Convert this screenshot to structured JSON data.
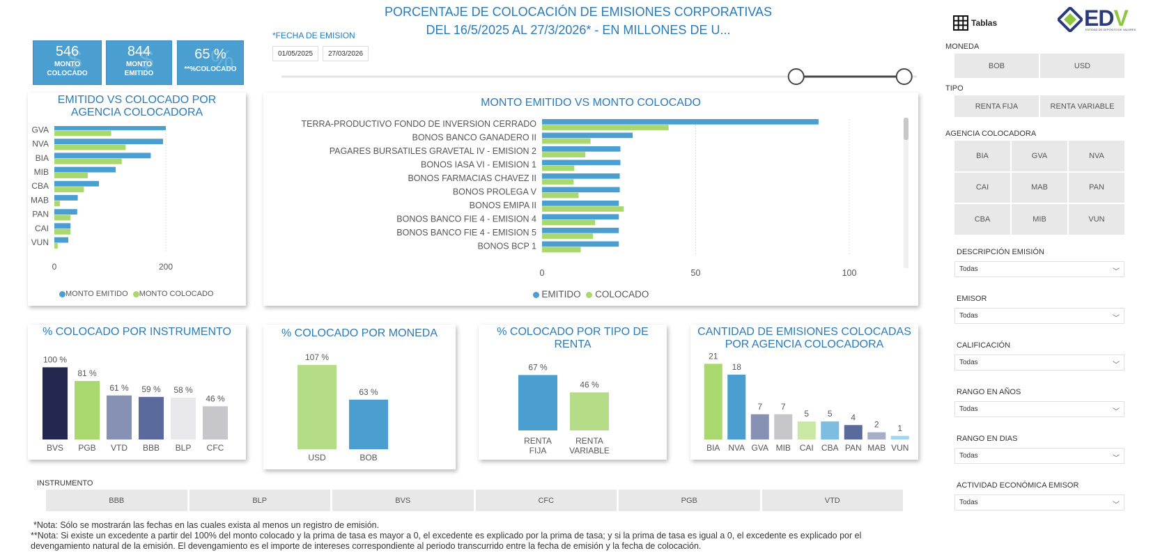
{
  "header": {
    "title_line1": "PORCENTAJE DE COLOCACIÓN DE EMISIONES CORPORATIVAS",
    "title_line2": "DEL 16/5/2025 AL 27/3/2026* - EN MILLONES DE U...",
    "tables_label": "Tablas",
    "logo_text": "EDV",
    "logo_sub": "ENTIDAD DE DEPÓSITO DE VALORES"
  },
  "kpis": [
    {
      "value": "546",
      "label1": "MONTO",
      "label2": "COLOCADO",
      "ghost": "$"
    },
    {
      "value": "844",
      "label1": "MONTO",
      "label2": "EMITIDO",
      "ghost": "$"
    },
    {
      "value": "65 %",
      "label1": "**%COLOCADO",
      "label2": "",
      "ghost": "%"
    }
  ],
  "date_filter": {
    "label": "*FECHA DE EMISION",
    "start": "01/05/2025",
    "end": "27/03/2026",
    "slider_start": 0.81,
    "slider_end": 0.98
  },
  "chart_data": [
    {
      "id": "agencia",
      "type": "bar",
      "orientation": "horizontal",
      "title": "EMITIDO VS COLOCADO POR AGENCIA COLOCADORA",
      "categories": [
        "GVA",
        "NVA",
        "BIA",
        "MIB",
        "CBA",
        "MAB",
        "PAN",
        "CAI",
        "VUN"
      ],
      "series": [
        {
          "name": "MONTO EMITIDO",
          "color": "#4a9fd0",
          "values": [
            200,
            195,
            173,
            110,
            80,
            42,
            41,
            29,
            25
          ]
        },
        {
          "name": "MONTO COLOCADO",
          "color": "#a9d86e",
          "values": [
            102,
            128,
            121,
            60,
            53,
            10,
            29,
            29,
            6
          ]
        }
      ],
      "xlim": [
        0,
        250
      ],
      "xticks": [
        "0",
        "200"
      ],
      "xtick_values": [
        0,
        200
      ],
      "legend": "bottom"
    },
    {
      "id": "emisiones",
      "type": "bar",
      "orientation": "horizontal",
      "title": "MONTO EMITIDO VS MONTO COLOCADO",
      "categories": [
        "TERRA-PRODUCTIVO FONDO DE INVERSION CERRADO",
        "BONOS BANCO GANADERO II",
        "PAGARES BURSATILES GRAVETAL IV - EMISION 2",
        "BONOS IASA VI - EMISION 1",
        "BONOS FARMACIAS CHAVEZ II",
        "BONOS PROLEGA V",
        "BONOS EMIPA II",
        "BONOS BANCO FIE 4 - EMISION 4",
        "BONOS BANCO FIE 4 - EMISION 5",
        "BONOS BCP 1"
      ],
      "series": [
        {
          "name": "EMITIDO",
          "color": "#4a9fd0",
          "values": [
            90,
            29.5,
            25.5,
            25.5,
            25.3,
            25.3,
            25,
            25,
            25,
            25
          ]
        },
        {
          "name": "COLOCADO",
          "color": "#a9d86e",
          "values": [
            41.2,
            15.8,
            14.1,
            10.5,
            10.3,
            11.9,
            26.6,
            17.3,
            16.6,
            12.6
          ]
        }
      ],
      "xlim": [
        0,
        100
      ],
      "xticks": [
        "0",
        "50",
        "100"
      ],
      "xtick_values": [
        0,
        50,
        100
      ],
      "legend": "bottom"
    },
    {
      "id": "instrumento",
      "type": "bar",
      "title": "% COLOCADO POR INSTRUMENTO",
      "categories": [
        "BVS",
        "PGB",
        "VTD",
        "BBB",
        "BLP",
        "CFC"
      ],
      "values": [
        100,
        81,
        61,
        59,
        58,
        46
      ],
      "labels": [
        "100 %",
        "81 %",
        "61 %",
        "59 %",
        "58 %",
        "46 %"
      ],
      "colors": [
        "#23284f",
        "#a9d86e",
        "#8791b4",
        "#5a6a9c",
        "#e9e9eb",
        "#c7c7cb"
      ],
      "ylim": [
        0,
        110
      ]
    },
    {
      "id": "moneda",
      "type": "bar",
      "title": "% COLOCADO POR MONEDA",
      "categories": [
        "USD",
        "BOB"
      ],
      "values": [
        107,
        63
      ],
      "labels": [
        "107 %",
        "63 %"
      ],
      "colors": [
        "#b5dc86",
        "#4a9fd0"
      ],
      "ylim": [
        0,
        115
      ]
    },
    {
      "id": "renta",
      "type": "bar",
      "title": "% COLOCADO POR TIPO DE RENTA",
      "categories": [
        "RENTA FIJA",
        "RENTA VARIABLE"
      ],
      "categories_line1": [
        "RENTA",
        "RENTA"
      ],
      "categories_line2": [
        "FIJA",
        "VARIABLE"
      ],
      "values": [
        67,
        46
      ],
      "labels": [
        "67 %",
        "46 %"
      ],
      "colors": [
        "#4a9fd0",
        "#b5dc86"
      ],
      "ylim": [
        0,
        80
      ]
    },
    {
      "id": "cantidad",
      "type": "bar",
      "title": "CANTIDAD DE EMISIONES COLOCADAS POR AGENCIA COLOCADORA",
      "categories": [
        "BIA",
        "NVA",
        "GVA",
        "MIB",
        "CAI",
        "CBA",
        "PAN",
        "MAB",
        "VUN"
      ],
      "values": [
        21,
        18,
        7,
        7,
        5,
        5,
        4,
        2,
        1
      ],
      "labels": [
        "21",
        "18",
        "7",
        "7",
        "5",
        "5",
        "4",
        "2",
        "1"
      ],
      "colors": [
        "#a9d86e",
        "#4a9fd0",
        "#8791b4",
        "#c7c7cb",
        "#c9e8a3",
        "#7fbde0",
        "#5a6a9c",
        "#a7adc8",
        "#a6d4ee"
      ],
      "ylim": [
        0,
        23
      ]
    }
  ],
  "instrument_filter": {
    "label": "INSTRUMENTO",
    "options": [
      "BBB",
      "BLP",
      "BVS",
      "CFC",
      "PGB",
      "VTD"
    ]
  },
  "sidebar": {
    "moneda": {
      "label": "MONEDA",
      "options": [
        "BOB",
        "USD"
      ]
    },
    "tipo": {
      "label": "TIPO",
      "options": [
        "RENTA FIJA",
        "RENTA VARIABLE"
      ]
    },
    "agencia": {
      "label": "AGENCIA COLOCADORA",
      "options": [
        "BIA",
        "GVA",
        "NVA",
        "CAI",
        "MAB",
        "PAN",
        "CBA",
        "MIB",
        "VUN"
      ]
    },
    "dropdowns": [
      {
        "label": "DESCRIPCIÓN EMISIÓN",
        "value": "Todas"
      },
      {
        "label": "EMISOR",
        "value": "Todas"
      },
      {
        "label": "CALIFICACIÓN",
        "value": "Todas"
      },
      {
        "label": "RANGO EN AÑOS",
        "value": "Todas"
      },
      {
        "label": "RANGO EN DIAS",
        "value": "Todas"
      },
      {
        "label": "ACTIVIDAD ECONÓMICA EMISOR",
        "value": "Todas"
      }
    ]
  },
  "notes": {
    "note1": "*Nota: Sólo se mostrarán las fechas en las cuales exista al menos un registro de emisión.",
    "note2": "**Nota: Si existe un excedente a partir del 100% del monto colocado y la prima de tasa es mayor a 0, el excedente es explicado por la prima de tasa; y si la prima de tasa es igual a 0, el excedente es explicado por el devengamiento natural de la emisión. El devengamiento es el importe de intereses correspondiente al periodo transcurrido entre la fecha de emisión y la fecha de colocación."
  },
  "colors": {
    "accent": "#2a7ab8",
    "emitido": "#4a9fd0",
    "colocado": "#a9d86e",
    "button_bg": "#e8e8e8"
  }
}
